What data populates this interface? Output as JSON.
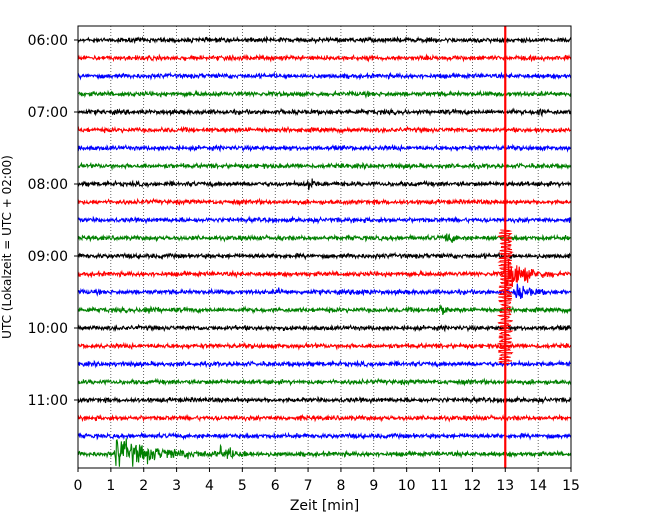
{
  "chart_data": {
    "type": "line",
    "xlabel": "Zeit  [min]",
    "ylabel": "UTC (Lokalzeit = UTC + 02:00)",
    "xlim": [
      0,
      15
    ],
    "x_ticks": [
      0,
      1,
      2,
      3,
      4,
      5,
      6,
      7,
      8,
      9,
      10,
      11,
      12,
      13,
      14,
      15
    ],
    "x_tick_labels": [
      "0",
      "1",
      "2",
      "3",
      "4",
      "5",
      "6",
      "7",
      "8",
      "9",
      "10",
      "11",
      "12",
      "13",
      "14",
      "15"
    ],
    "y_range_hours": [
      "06:00",
      "11:45"
    ],
    "trace_interval_min": 15,
    "y_tick_labels": [
      "06:00",
      "07:00",
      "08:00",
      "09:00",
      "10:00",
      "11:00"
    ],
    "vertical_grid": "dotted",
    "trace_colors": [
      "#000000",
      "#ff0000",
      "#0000ff",
      "#008000"
    ],
    "event_marker": {
      "x": 13.0,
      "color": "#ff0000"
    },
    "traces": [
      {
        "start": "06:00",
        "color": "#000000"
      },
      {
        "start": "06:15",
        "color": "#ff0000"
      },
      {
        "start": "06:30",
        "color": "#0000ff"
      },
      {
        "start": "06:45",
        "color": "#008000"
      },
      {
        "start": "07:00",
        "color": "#000000"
      },
      {
        "start": "07:15",
        "color": "#ff0000"
      },
      {
        "start": "07:30",
        "color": "#0000ff"
      },
      {
        "start": "07:45",
        "color": "#008000"
      },
      {
        "start": "08:00",
        "color": "#000000"
      },
      {
        "start": "08:15",
        "color": "#ff0000"
      },
      {
        "start": "08:30",
        "color": "#0000ff"
      },
      {
        "start": "08:45",
        "color": "#008000"
      },
      {
        "start": "09:00",
        "color": "#000000"
      },
      {
        "start": "09:15",
        "color": "#ff0000"
      },
      {
        "start": "09:30",
        "color": "#0000ff"
      },
      {
        "start": "09:45",
        "color": "#008000"
      },
      {
        "start": "10:00",
        "color": "#000000"
      },
      {
        "start": "10:15",
        "color": "#ff0000"
      },
      {
        "start": "10:30",
        "color": "#0000ff"
      },
      {
        "start": "10:45",
        "color": "#008000"
      },
      {
        "start": "11:00",
        "color": "#000000"
      },
      {
        "start": "11:15",
        "color": "#ff0000"
      },
      {
        "start": "11:30",
        "color": "#0000ff"
      },
      {
        "start": "11:45",
        "color": "#008000"
      }
    ]
  }
}
